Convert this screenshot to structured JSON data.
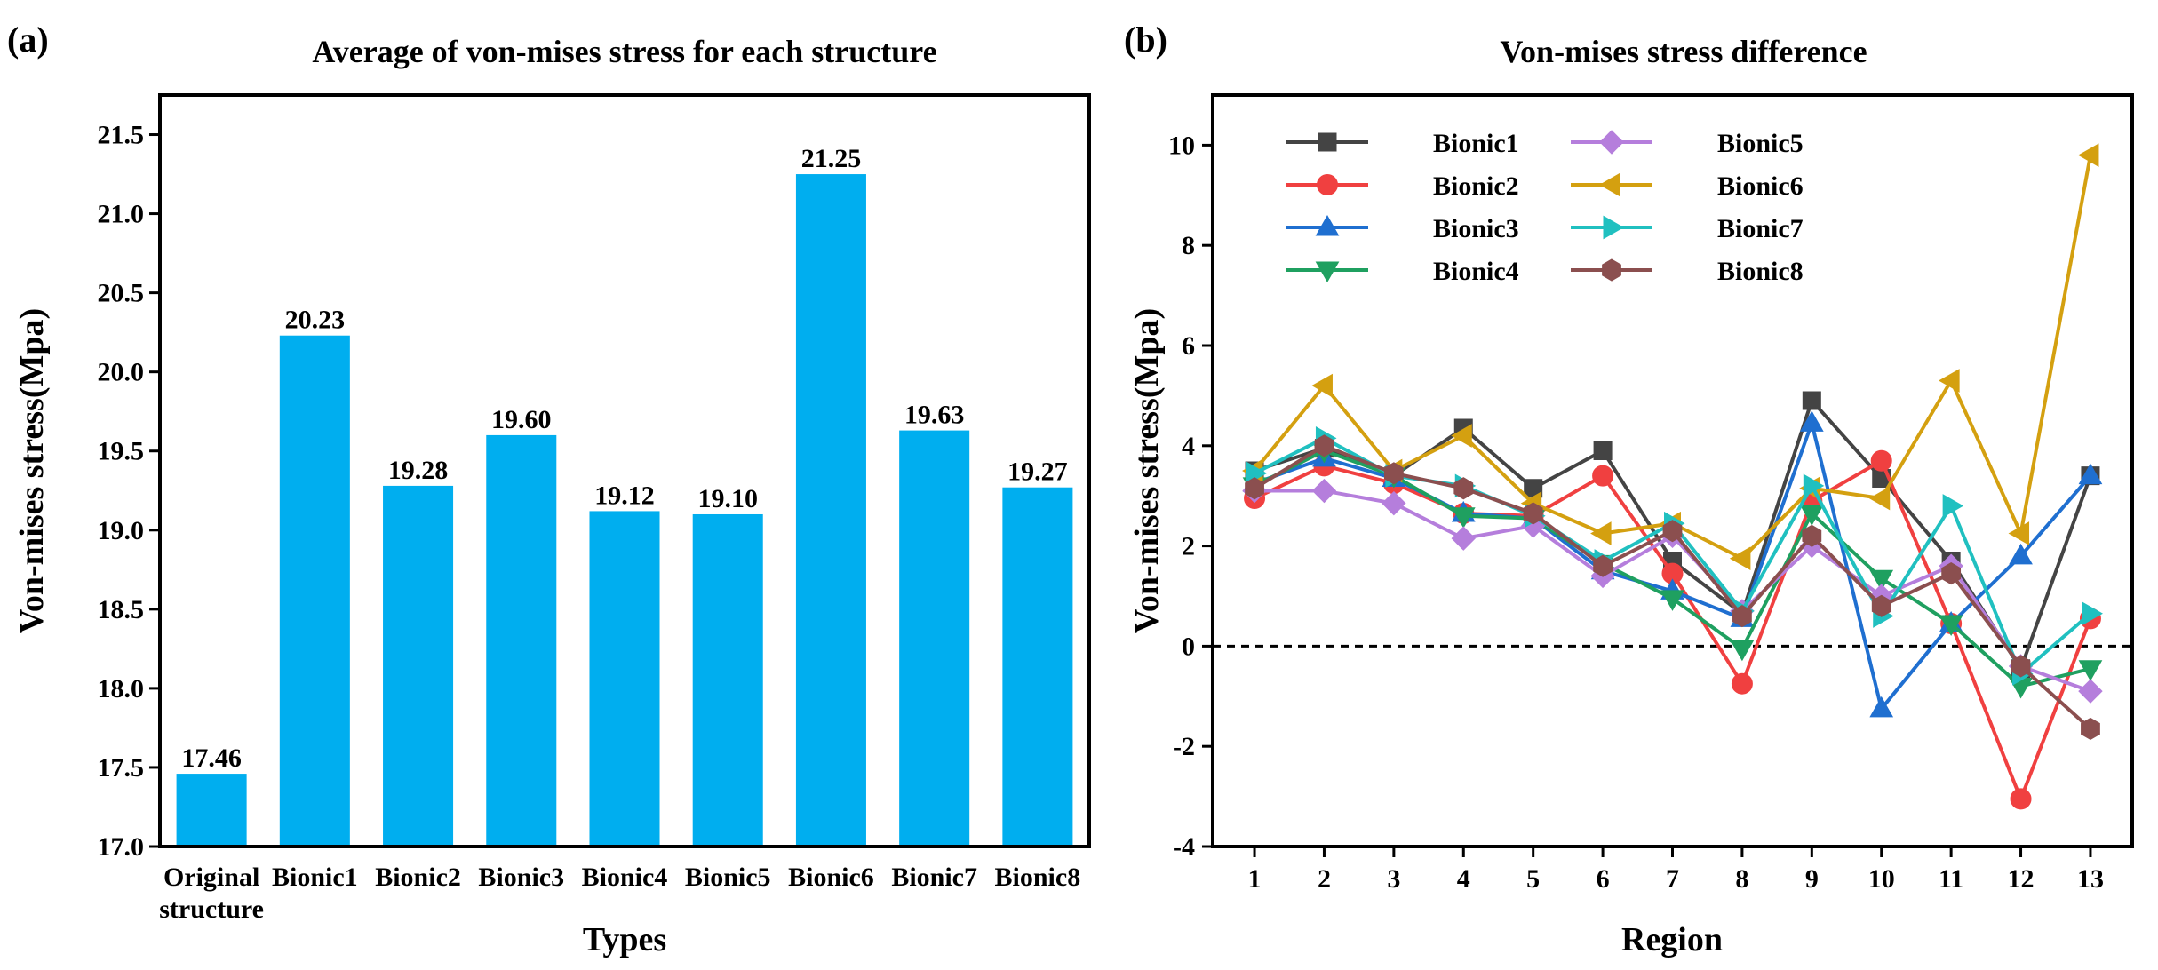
{
  "chart_data": [
    {
      "panel_label": "(a)",
      "type": "bar",
      "title": "Average of von-mises stress for each structure",
      "xlabel": "Types",
      "ylabel": "Von-mises stress(Mpa)",
      "ylim": [
        17.0,
        21.75
      ],
      "yticks": [
        17.0,
        17.5,
        18.0,
        18.5,
        19.0,
        19.5,
        20.0,
        20.5,
        21.0,
        21.5
      ],
      "ytick_labels": [
        "17.0",
        "17.5",
        "18.0",
        "18.5",
        "19.0",
        "19.5",
        "20.0",
        "20.5",
        "21.0",
        "21.5"
      ],
      "categories": [
        [
          "Original",
          "structure"
        ],
        [
          "Bionic1"
        ],
        [
          "Bionic2"
        ],
        [
          "Bionic3"
        ],
        [
          "Bionic4"
        ],
        [
          "Bionic5"
        ],
        [
          "Bionic6"
        ],
        [
          "Bionic7"
        ],
        [
          "Bionic8"
        ]
      ],
      "values": [
        17.46,
        20.23,
        19.28,
        19.6,
        19.12,
        19.1,
        21.25,
        19.63,
        19.27
      ],
      "value_labels": [
        "17.46",
        "20.23",
        "19.28",
        "19.60",
        "19.12",
        "19.10",
        "21.25",
        "19.63",
        "19.27"
      ],
      "bar_color": "#00AEEF"
    },
    {
      "panel_label": "(b)",
      "type": "line",
      "title": "Von-mises stress difference",
      "xlabel": "Region",
      "ylabel": "Von-mises stress(Mpa)",
      "x": [
        1,
        2,
        3,
        4,
        5,
        6,
        7,
        8,
        9,
        10,
        11,
        12,
        13
      ],
      "xtick_labels": [
        "1",
        "2",
        "3",
        "4",
        "5",
        "6",
        "7",
        "8",
        "9",
        "10",
        "11",
        "12",
        "13"
      ],
      "xlim": [
        0.4,
        13.6
      ],
      "ylim": [
        -4,
        11
      ],
      "yticks": [
        -4,
        -2,
        0,
        2,
        4,
        6,
        8,
        10
      ],
      "ytick_labels": [
        "-4",
        "-2",
        "0",
        "2",
        "4",
        "6",
        "8",
        "10"
      ],
      "reference_line": 0,
      "legend_position": "top-left",
      "series": [
        {
          "name": "Bionic1",
          "color": "#444444",
          "marker": "square",
          "values": [
            3.5,
            3.95,
            3.4,
            4.35,
            3.15,
            3.9,
            1.7,
            0.65,
            4.9,
            3.35,
            1.7,
            -0.45,
            3.4
          ]
        },
        {
          "name": "Bionic2",
          "color": "#F04040",
          "marker": "circle",
          "values": [
            2.95,
            3.6,
            3.25,
            2.65,
            2.6,
            3.4,
            1.45,
            -0.75,
            2.9,
            3.7,
            0.45,
            -3.05,
            0.55
          ]
        },
        {
          "name": "Bionic3",
          "color": "#1F6FD0",
          "marker": "triangle-up",
          "values": [
            3.25,
            3.75,
            3.35,
            2.65,
            2.55,
            1.5,
            1.1,
            0.55,
            4.45,
            -1.25,
            0.45,
            1.8,
            3.4
          ]
        },
        {
          "name": "Bionic4",
          "color": "#1FA060",
          "marker": "triangle-down",
          "values": [
            3.2,
            3.9,
            3.4,
            2.6,
            2.55,
            1.65,
            0.95,
            -0.05,
            2.65,
            1.35,
            0.45,
            -0.8,
            -0.45
          ]
        },
        {
          "name": "Bionic5",
          "color": "#B57EDC",
          "marker": "diamond",
          "values": [
            3.1,
            3.1,
            2.85,
            2.15,
            2.4,
            1.4,
            2.2,
            0.7,
            2.0,
            1.0,
            1.6,
            -0.4,
            -0.9
          ]
        },
        {
          "name": "Bionic6",
          "color": "#D4A010",
          "marker": "triangle-left",
          "values": [
            3.5,
            5.2,
            3.5,
            4.2,
            2.85,
            2.25,
            2.45,
            1.75,
            3.15,
            2.95,
            5.3,
            2.25,
            9.8
          ]
        },
        {
          "name": "Bionic7",
          "color": "#20C0C0",
          "marker": "triangle-right",
          "values": [
            3.45,
            4.15,
            3.4,
            3.2,
            2.6,
            1.7,
            2.45,
            0.7,
            3.2,
            0.6,
            2.8,
            -0.55,
            0.65
          ]
        },
        {
          "name": "Bionic8",
          "color": "#8B4F4F",
          "marker": "hexagon",
          "values": [
            3.15,
            4.0,
            3.45,
            3.15,
            2.65,
            1.6,
            2.3,
            0.6,
            2.2,
            0.8,
            1.45,
            -0.4,
            -1.65
          ]
        }
      ]
    }
  ]
}
